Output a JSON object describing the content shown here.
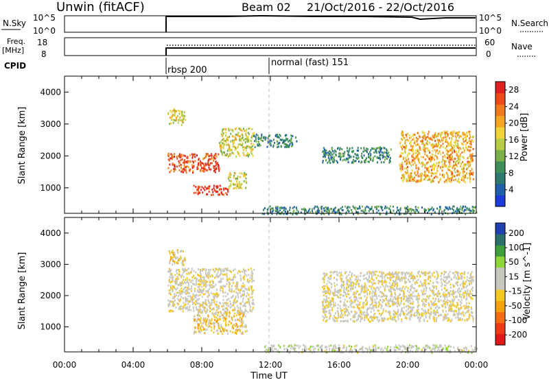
{
  "header": {
    "station": "Unwin (fitACF)",
    "beam": "Beam 02",
    "date_range": "21/Oct/2016 - 22/Oct/2016"
  },
  "strips": {
    "nsky_label": "N.Sky",
    "nsky_ticks": [
      "10^5",
      "10^0"
    ],
    "nsearch_label": "N.Search",
    "nsearch_ticks": [
      "10^5",
      "10^0"
    ],
    "freq_label_1": "Freq.",
    "freq_label_2": "[MHz]",
    "freq_ticks": [
      "18",
      "8"
    ],
    "nave_label": "Nave",
    "nave_ticks": [
      "60",
      "0"
    ],
    "cpid_label": "CPID",
    "cpid_segments": [
      {
        "label": "rbsp 200",
        "start_hour": 6.0
      },
      {
        "label": "normal (fast) 151",
        "start_hour": 12.0
      }
    ]
  },
  "chart_data": [
    {
      "type": "heatmap",
      "title": "",
      "xlabel": "Time UT",
      "ylabel": "Slant Range [km]",
      "xlim": [
        0,
        24
      ],
      "ylim": [
        200,
        4500
      ],
      "x_ticks": [
        "00:00",
        "04:00",
        "08:00",
        "12:00",
        "16:00",
        "20:00",
        "00:00"
      ],
      "y_ticks": [
        1000,
        2000,
        3000,
        4000
      ],
      "colorbar": {
        "label": "Power [dB]",
        "ticks": [
          28,
          24,
          20,
          16,
          12,
          8,
          4
        ],
        "range": [
          0,
          30
        ],
        "colors": [
          "#1d3bd8",
          "#1f5fa8",
          "#2c7a70",
          "#3f8f5a",
          "#7ab04a",
          "#b8cc45",
          "#f2d43a",
          "#f5a623",
          "#f07a1e",
          "#ee4a1c",
          "#e02020"
        ]
      },
      "regions": [
        {
          "t0": 6.0,
          "t1": 7.0,
          "r0": 3000,
          "r1": 3500,
          "power": 16
        },
        {
          "t0": 6.0,
          "t1": 9.0,
          "r0": 1500,
          "r1": 2100,
          "power": 26
        },
        {
          "t0": 9.0,
          "t1": 11.0,
          "r0": 2000,
          "r1": 2900,
          "power": 16
        },
        {
          "t0": 7.5,
          "t1": 9.5,
          "r0": 800,
          "r1": 1100,
          "power": 28
        },
        {
          "t0": 9.5,
          "t1": 10.6,
          "r0": 1000,
          "r1": 1500,
          "power": 16
        },
        {
          "t0": 11.0,
          "t1": 13.5,
          "r0": 2300,
          "r1": 2700,
          "power": 8
        },
        {
          "t0": 19.5,
          "t1": 23.8,
          "r0": 1200,
          "r1": 2800,
          "power": 20
        },
        {
          "t0": 15.0,
          "t1": 19.0,
          "r0": 1800,
          "r1": 2300,
          "power": 8
        },
        {
          "t0": 11.5,
          "t1": 24.0,
          "r0": 200,
          "r1": 450,
          "power": 8
        }
      ]
    },
    {
      "type": "heatmap",
      "title": "",
      "xlabel": "Time UT",
      "ylabel": "Slant Range [km]",
      "xlim": [
        0,
        24
      ],
      "ylim": [
        200,
        4500
      ],
      "x_ticks": [
        "00:00",
        "04:00",
        "08:00",
        "12:00",
        "16:00",
        "20:00",
        "00:00"
      ],
      "y_ticks": [
        1000,
        2000,
        3000,
        4000
      ],
      "colorbar": {
        "label": "Velocity [m s^-1]",
        "ticks": [
          200,
          100,
          50,
          15,
          -15,
          -50,
          -100,
          -200
        ],
        "range": [
          -250,
          250
        ],
        "colors": [
          "#e01818",
          "#ee3a16",
          "#f46d12",
          "#f5a20f",
          "#f4c820",
          "#c8c8c0",
          "#c8c8c0",
          "#8fd63a",
          "#3f9f3a",
          "#2a6f6a",
          "#2040b0"
        ]
      },
      "regions": [
        {
          "t0": 6.0,
          "t1": 7.0,
          "r0": 3000,
          "r1": 3500,
          "velocity": -30
        },
        {
          "t0": 6.0,
          "t1": 11.0,
          "r0": 1500,
          "r1": 2900,
          "velocity": 0
        },
        {
          "t0": 7.5,
          "t1": 10.6,
          "r0": 800,
          "r1": 1500,
          "velocity": -40
        },
        {
          "t0": 15.0,
          "t1": 23.8,
          "r0": 1200,
          "r1": 2800,
          "velocity": 0
        },
        {
          "t0": 11.5,
          "t1": 24.0,
          "r0": 200,
          "r1": 450,
          "velocity": 30
        }
      ]
    }
  ],
  "colors": {
    "axis": "#000000",
    "midnight_line": "#bbbbbb"
  }
}
